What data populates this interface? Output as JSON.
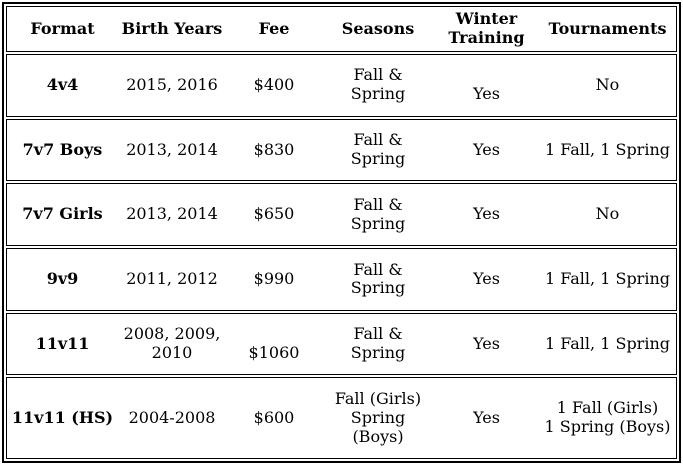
{
  "table": {
    "columns": [
      "Format",
      "Birth Years",
      "Fee",
      "Seasons",
      "Winter\nTraining",
      "Tournaments"
    ],
    "rows": [
      {
        "format": "4v4",
        "birth_years": "2015, 2016",
        "fee": "$400",
        "seasons": "Fall & Spring",
        "winter_training": "Yes",
        "tournaments": "No"
      },
      {
        "format": "7v7 Boys",
        "birth_years": "2013, 2014",
        "fee": "$830",
        "seasons": "Fall & Spring",
        "winter_training": "Yes",
        "tournaments": "1 Fall, 1 Spring"
      },
      {
        "format": "7v7 Girls",
        "birth_years": "2013, 2014",
        "fee": "$650",
        "seasons": "Fall & Spring",
        "winter_training": "Yes",
        "tournaments": "No"
      },
      {
        "format": "9v9",
        "birth_years": "2011, 2012",
        "fee": "$990",
        "seasons": "Fall & Spring",
        "winter_training": "Yes",
        "tournaments": "1 Fall, 1 Spring"
      },
      {
        "format": "11v11",
        "birth_years": "2008, 2009,\n2010",
        "fee": "$1060",
        "seasons": "Fall & Spring",
        "winter_training": "Yes",
        "tournaments": "1 Fall, 1 Spring"
      },
      {
        "format": "11v11 (HS)",
        "birth_years": "2004-2008",
        "fee": "$600",
        "seasons": "Fall (Girls)\nSpring (Boys)",
        "winter_training": "Yes",
        "tournaments": "1 Fall (Girls)\n1 Spring (Boys)"
      }
    ],
    "colors": {
      "border": "#000000",
      "text": "#000000",
      "background": "#ffffff"
    }
  }
}
